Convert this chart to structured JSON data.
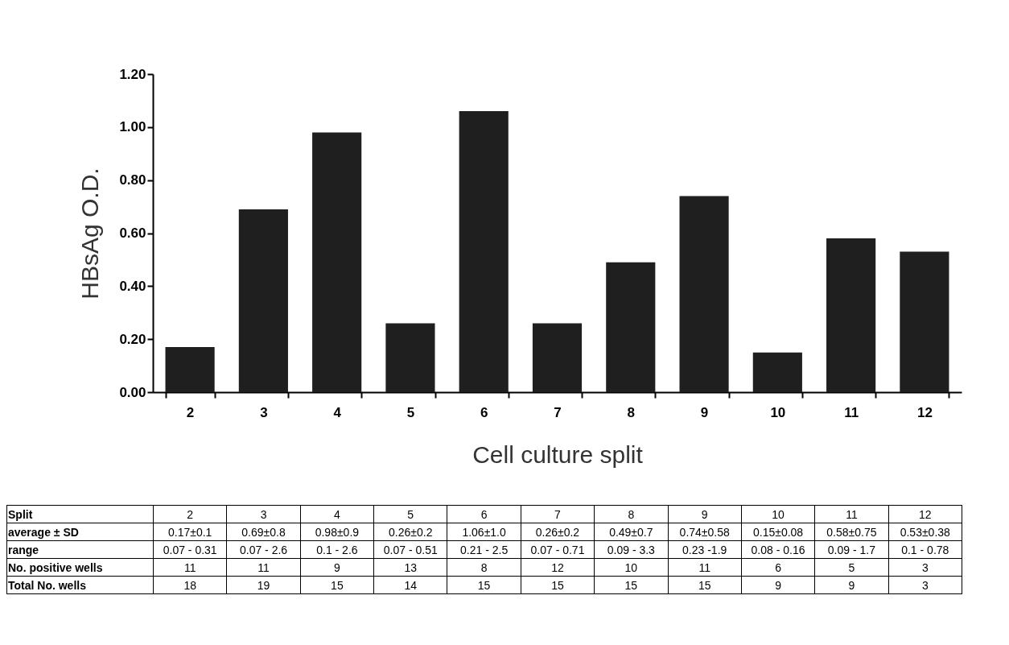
{
  "chart_data": {
    "type": "bar",
    "xlabel": "Cell culture split",
    "ylabel": "HBsAg O.D.",
    "categories": [
      "2",
      "3",
      "4",
      "5",
      "6",
      "7",
      "8",
      "9",
      "10",
      "11",
      "12"
    ],
    "values": [
      0.17,
      0.69,
      0.98,
      0.26,
      1.06,
      0.26,
      0.49,
      0.74,
      0.15,
      0.58,
      0.53
    ],
    "color": "#1f1f1f",
    "ylim": [
      0,
      1.2
    ],
    "yticks": [
      {
        "value": 0,
        "label": "0.00"
      },
      {
        "value": 0.2,
        "label": "0.20"
      },
      {
        "value": 0.4,
        "label": "0.40"
      },
      {
        "value": 0.6,
        "label": "0.60"
      },
      {
        "value": 0.8,
        "label": "0.80"
      },
      {
        "value": 1,
        "label": "1.00"
      },
      {
        "value": 1.2,
        "label": "1.20"
      }
    ],
    "value_labels": [
      "0.17±0.1",
      "0.69±0.8",
      "0.98±0.9",
      "0.26±0.2",
      "1.06±1.0",
      "0.26±0.2",
      "0.49±0.7",
      "0.74±0.58",
      "0.15±0.08",
      "0.58±0.75",
      "0.53±0.38"
    ],
    "annotations": [
      "Split",
      "average ± SD",
      "range",
      "0.07 - 0.31",
      "0.07 - 2.6",
      "0.1 - 2.6",
      "0.07 - 0.51",
      "0.21 - 2.5",
      "0.07 - 0.71",
      "0.09 - 3.3",
      "0.23 -1.9",
      "0.08 - 0.16",
      "0.09 - 1.7",
      "0.1 - 0.78",
      "No. positive wells",
      "11",
      "11",
      "9",
      "13",
      "8",
      "12",
      "10",
      "11",
      "6",
      "5",
      "3",
      "Total No. wells",
      "18",
      "19",
      "15",
      "14",
      "15",
      "15",
      "15",
      "15",
      "9",
      "9",
      "3"
    ]
  }
}
